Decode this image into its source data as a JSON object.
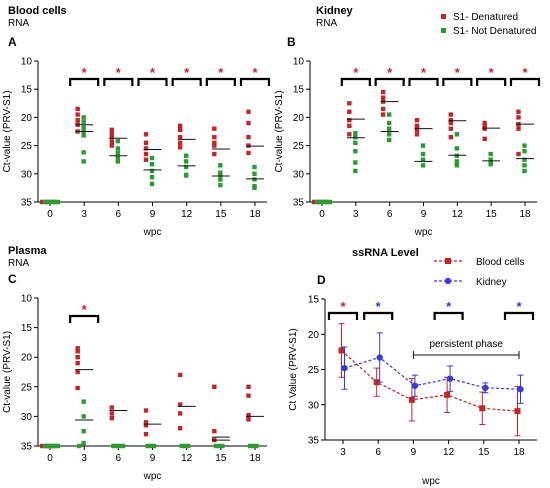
{
  "colors": {
    "denatured": "#c0272d",
    "not_denatured": "#2e9a36",
    "blood": "#c0272d",
    "kidney": "#3a3ad6",
    "axis": "#000000"
  },
  "chart_data": [
    {
      "type": "scatter",
      "letter": "A",
      "title": "Blood cells",
      "subtitle": "RNA",
      "xlabel": "wpc",
      "ylabel": "Ct-value (PRV-S1)",
      "ylim": [
        35,
        10
      ],
      "yticks": [
        10,
        15,
        20,
        25,
        30,
        35
      ],
      "categories": [
        "0",
        "3",
        "6",
        "9",
        "12",
        "15",
        "18"
      ],
      "significance": [
        "",
        "*",
        "*",
        "*",
        "*",
        "*",
        "*"
      ],
      "series": [
        {
          "name": "S1- Denatured",
          "points": [
            [
              0,
              35
            ],
            [
              0,
              35
            ],
            [
              0,
              35
            ],
            [
              0,
              35
            ],
            [
              0,
              35
            ],
            [
              3,
              18.5
            ],
            [
              3,
              19.5
            ],
            [
              3,
              20.5
            ],
            [
              3,
              21.3
            ],
            [
              3,
              22.5
            ],
            [
              6,
              22.2
            ],
            [
              6,
              22.8
            ],
            [
              6,
              23.5
            ],
            [
              6,
              24.3
            ],
            [
              6,
              25
            ],
            [
              9,
              23
            ],
            [
              9,
              24.5
            ],
            [
              9,
              25.5
            ],
            [
              9,
              26.5
            ],
            [
              9,
              27.5
            ],
            [
              12,
              21.5
            ],
            [
              12,
              22.2
            ],
            [
              12,
              23.5
            ],
            [
              12,
              24.5
            ],
            [
              12,
              25.3
            ],
            [
              15,
              22
            ],
            [
              15,
              23.5
            ],
            [
              15,
              24.5
            ],
            [
              15,
              25
            ],
            [
              15,
              26.5
            ],
            [
              18,
              19
            ],
            [
              18,
              21
            ],
            [
              18,
              23.5
            ],
            [
              18,
              25
            ],
            [
              18,
              26.3
            ]
          ]
        },
        {
          "name": "S1- Not Denatured",
          "points": [
            [
              0,
              35
            ],
            [
              0,
              35
            ],
            [
              0,
              35
            ],
            [
              0,
              35
            ],
            [
              0,
              35
            ],
            [
              3,
              20
            ],
            [
              3,
              20.8
            ],
            [
              3,
              21.8
            ],
            [
              3,
              22.5
            ],
            [
              3,
              23.2
            ],
            [
              3,
              26.2
            ],
            [
              3,
              27.8
            ],
            [
              6,
              24.2
            ],
            [
              6,
              25.5
            ],
            [
              6,
              26.3
            ],
            [
              6,
              27.2
            ],
            [
              6,
              27.8
            ],
            [
              9,
              27.2
            ],
            [
              9,
              28.3
            ],
            [
              9,
              29.5
            ],
            [
              9,
              30.6
            ],
            [
              9,
              31.8
            ],
            [
              12,
              26.8
            ],
            [
              12,
              27.8
            ],
            [
              12,
              28.8
            ],
            [
              12,
              30.2
            ],
            [
              12,
              30.3
            ],
            [
              15,
              28.5
            ],
            [
              15,
              29.8
            ],
            [
              15,
              30.2
            ],
            [
              15,
              31
            ],
            [
              15,
              32
            ],
            [
              18,
              28.8
            ],
            [
              18,
              30
            ],
            [
              18,
              31
            ],
            [
              18,
              32.2
            ],
            [
              18,
              32.5
            ]
          ]
        }
      ],
      "means": [
        {
          "x": 3,
          "y": 21.3
        },
        {
          "x": 3,
          "y": 22.5
        },
        {
          "x": 6,
          "y": 23.7
        },
        {
          "x": 6,
          "y": 26.8
        },
        {
          "x": 9,
          "y": 25.7
        },
        {
          "x": 9,
          "y": 29.3
        },
        {
          "x": 12,
          "y": 23.9
        },
        {
          "x": 12,
          "y": 28.6
        },
        {
          "x": 15,
          "y": 25.6
        },
        {
          "x": 15,
          "y": 30.4
        },
        {
          "x": 18,
          "y": 25.1
        },
        {
          "x": 18,
          "y": 30.9
        }
      ]
    },
    {
      "type": "scatter",
      "letter": "B",
      "title": "Kidney",
      "subtitle": "RNA",
      "xlabel": "wpc",
      "ylabel": "Ct-value (PRV-S1)",
      "ylim": [
        35,
        10
      ],
      "yticks": [
        10,
        15,
        20,
        25,
        30,
        35
      ],
      "categories": [
        "0",
        "3",
        "6",
        "9",
        "12",
        "15",
        "18"
      ],
      "significance": [
        "",
        "*",
        "*",
        "*",
        "*",
        "*",
        "*"
      ],
      "legend": [
        "S1- Denatured",
        "S1- Not Denatured"
      ],
      "series": [
        {
          "name": "S1- Denatured",
          "points": [
            [
              0,
              35
            ],
            [
              0,
              35
            ],
            [
              0,
              35
            ],
            [
              0,
              35
            ],
            [
              0,
              35
            ],
            [
              3,
              17.5
            ],
            [
              3,
              19
            ],
            [
              3,
              20.5
            ],
            [
              3,
              21.5
            ],
            [
              3,
              23
            ],
            [
              6,
              15.5
            ],
            [
              6,
              16.5
            ],
            [
              6,
              17.2
            ],
            [
              6,
              18.5
            ],
            [
              6,
              19.5
            ],
            [
              9,
              20.5
            ],
            [
              9,
              21.5
            ],
            [
              9,
              22
            ],
            [
              9,
              22.2
            ],
            [
              9,
              23
            ],
            [
              12,
              19.5
            ],
            [
              12,
              20.5
            ],
            [
              12,
              21
            ],
            [
              12,
              22
            ],
            [
              12,
              23.5
            ],
            [
              15,
              21
            ],
            [
              15,
              21.5
            ],
            [
              15,
              21.8
            ],
            [
              15,
              22
            ],
            [
              15,
              23.8
            ],
            [
              18,
              19
            ],
            [
              18,
              20
            ],
            [
              18,
              21.2
            ],
            [
              18,
              22
            ],
            [
              18,
              26.5
            ]
          ]
        },
        {
          "name": "S1- Not Denatured",
          "points": [
            [
              0,
              35
            ],
            [
              0,
              35
            ],
            [
              0,
              35
            ],
            [
              0,
              35
            ],
            [
              0,
              35
            ],
            [
              3,
              22.8
            ],
            [
              3,
              23.5
            ],
            [
              3,
              24.5
            ],
            [
              3,
              26
            ],
            [
              3,
              28
            ],
            [
              3,
              29.5
            ],
            [
              6,
              19.5
            ],
            [
              6,
              21
            ],
            [
              6,
              22
            ],
            [
              6,
              23
            ],
            [
              6,
              24
            ],
            [
              9,
              25
            ],
            [
              9,
              26.5
            ],
            [
              9,
              27.5
            ],
            [
              9,
              28.5
            ],
            [
              12,
              23
            ],
            [
              12,
              25.5
            ],
            [
              12,
              26.8
            ],
            [
              12,
              27.8
            ],
            [
              12,
              28.5
            ],
            [
              15,
              26.5
            ],
            [
              15,
              27.5
            ],
            [
              15,
              28
            ],
            [
              15,
              28.3
            ],
            [
              18,
              25
            ],
            [
              18,
              26
            ],
            [
              18,
              27.5
            ],
            [
              18,
              28.5
            ],
            [
              18,
              29.5
            ]
          ]
        }
      ],
      "means": [
        {
          "x": 3,
          "y": 20.3
        },
        {
          "x": 3,
          "y": 23.6
        },
        {
          "x": 6,
          "y": 17.2
        },
        {
          "x": 6,
          "y": 22.5
        },
        {
          "x": 9,
          "y": 22.0
        },
        {
          "x": 9,
          "y": 27.8
        },
        {
          "x": 12,
          "y": 20.6
        },
        {
          "x": 12,
          "y": 26.7
        },
        {
          "x": 15,
          "y": 21.9
        },
        {
          "x": 15,
          "y": 27.7
        },
        {
          "x": 18,
          "y": 21.2
        },
        {
          "x": 18,
          "y": 27.3
        }
      ]
    },
    {
      "type": "scatter",
      "letter": "C",
      "title": "Plasma",
      "subtitle": "RNA",
      "xlabel": "wpc",
      "ylabel": "Ct-value (PRV-S1)",
      "ylim": [
        35,
        10
      ],
      "yticks": [
        10,
        15,
        20,
        25,
        30,
        35
      ],
      "categories": [
        "0",
        "3",
        "6",
        "9",
        "12",
        "15",
        "18"
      ],
      "significance": [
        "",
        "*",
        "",
        "",
        "",
        "",
        ""
      ],
      "series": [
        {
          "name": "S1- Denatured",
          "points": [
            [
              0,
              35
            ],
            [
              0,
              35
            ],
            [
              0,
              35
            ],
            [
              0,
              35
            ],
            [
              0,
              35
            ],
            [
              3,
              18.5
            ],
            [
              3,
              19
            ],
            [
              3,
              20
            ],
            [
              3,
              21
            ],
            [
              3,
              22.5
            ],
            [
              3,
              25.2
            ],
            [
              6,
              28.5
            ],
            [
              6,
              29.5
            ],
            [
              6,
              30.3
            ],
            [
              9,
              29
            ],
            [
              9,
              31
            ],
            [
              9,
              31.5
            ],
            [
              9,
              33
            ],
            [
              12,
              23
            ],
            [
              12,
              28
            ],
            [
              12,
              29.5
            ],
            [
              12,
              32
            ],
            [
              15,
              25
            ],
            [
              15,
              32.5
            ],
            [
              15,
              34
            ],
            [
              18,
              25
            ],
            [
              18,
              26.5
            ],
            [
              18,
              29.8
            ],
            [
              18,
              30.5
            ]
          ]
        },
        {
          "name": "S1- Not Denatured",
          "points": [
            [
              0,
              35
            ],
            [
              0,
              35
            ],
            [
              0,
              35
            ],
            [
              0,
              35
            ],
            [
              0,
              35
            ],
            [
              3,
              27.5
            ],
            [
              3,
              30
            ],
            [
              3,
              32.5
            ],
            [
              3,
              34.5
            ],
            [
              3,
              35
            ],
            [
              6,
              35
            ],
            [
              6,
              35
            ],
            [
              6,
              35
            ],
            [
              6,
              35
            ],
            [
              9,
              35
            ],
            [
              9,
              35
            ],
            [
              9,
              35
            ],
            [
              12,
              35
            ],
            [
              12,
              35
            ],
            [
              12,
              35
            ],
            [
              15,
              35
            ],
            [
              15,
              35
            ],
            [
              15,
              35
            ],
            [
              18,
              35
            ],
            [
              18,
              35
            ],
            [
              18,
              35
            ]
          ]
        }
      ],
      "means": [
        {
          "x": 3,
          "y": 22.1
        },
        {
          "x": 3,
          "y": 30.6
        },
        {
          "x": 6,
          "y": 29.0
        },
        {
          "x": 9,
          "y": 31.3
        },
        {
          "x": 12,
          "y": 28.3
        },
        {
          "x": 15,
          "y": 33.5
        },
        {
          "x": 15,
          "y": 34.0
        },
        {
          "x": 18,
          "y": 30.0
        }
      ]
    },
    {
      "type": "line",
      "letter": "D",
      "title": "ssRNA Level",
      "xlabel": "wpc",
      "ylabel": "Ct Value (PRV-S1)",
      "ylim": [
        35,
        15
      ],
      "yticks": [
        15,
        20,
        25,
        30,
        35
      ],
      "x": [
        3,
        6,
        9,
        12,
        15,
        18
      ],
      "annotation": "persistent phase",
      "significance": [
        {
          "x": 3,
          "label": "*",
          "series": "Blood cells"
        },
        {
          "x": 6,
          "label": "*",
          "series": "Kidney"
        },
        {
          "x": 12,
          "label": "*",
          "series": "Kidney"
        },
        {
          "x": 18,
          "label": "*",
          "series": "Kidney"
        }
      ],
      "series": [
        {
          "name": "Blood cells",
          "values": [
            22.3,
            26.8,
            29.3,
            28.6,
            30.5,
            30.9
          ],
          "error": [
            3.8,
            2.0,
            3.0,
            2.5,
            2.3,
            3.5
          ]
        },
        {
          "name": "Kidney",
          "values": [
            24.8,
            23.3,
            27.3,
            26.3,
            27.6,
            27.8
          ],
          "error": [
            3.0,
            3.5,
            1.5,
            1.8,
            0.7,
            2.0
          ]
        }
      ]
    }
  ]
}
